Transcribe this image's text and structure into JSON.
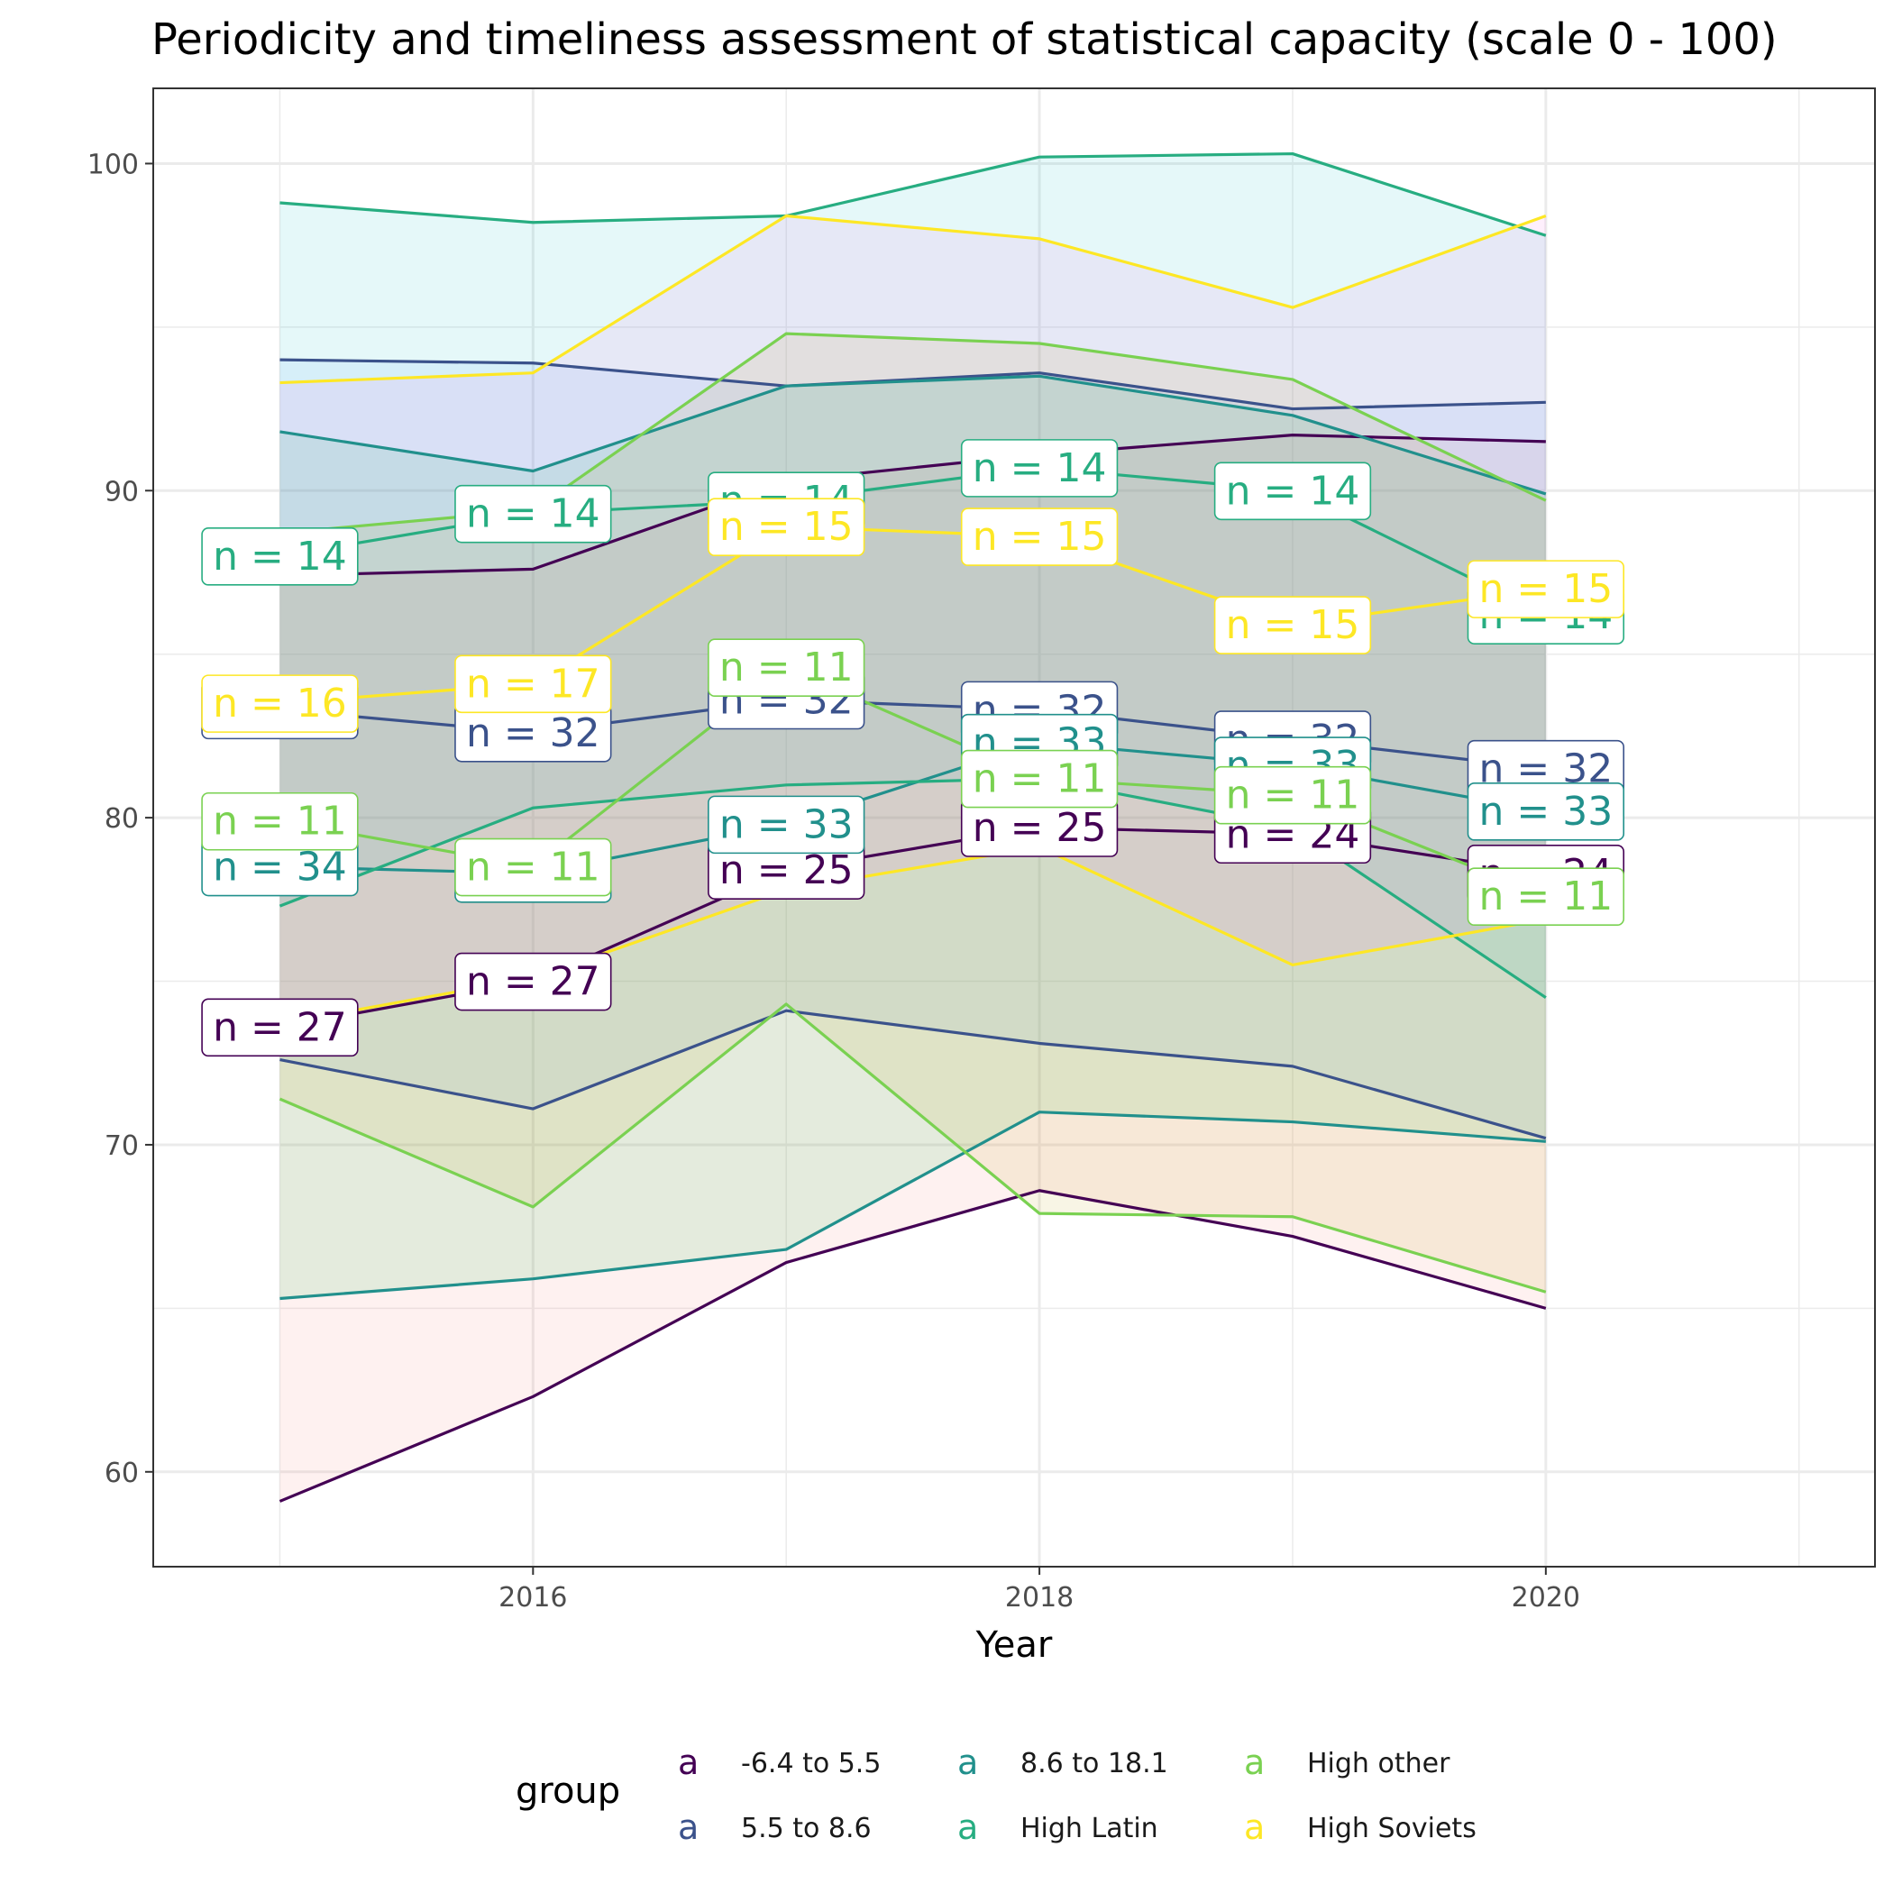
{
  "chart_data": {
    "type": "line",
    "title": "Periodicity and timeliness assessment of statistical capacity (scale 0 - 100)",
    "xlabel": "Year",
    "ylabel": "",
    "x": [
      2015,
      2016,
      2017,
      2018,
      2019,
      2020
    ],
    "xlim": [
      2014.5,
      2021.3
    ],
    "ylim": [
      57.1,
      102.3
    ],
    "xticks": [
      2016,
      2018,
      2020
    ],
    "yticks": [
      60,
      70,
      80,
      90,
      100
    ],
    "grid": true,
    "legend": {
      "title": "group",
      "placement": "bottom",
      "key_glyph": "a"
    },
    "series": [
      {
        "name": "-6.4 to 5.5",
        "color": "#440154",
        "mean": [
          73.6,
          75.0,
          78.4,
          79.7,
          79.5,
          78.3
        ],
        "upper": [
          87.4,
          87.6,
          90.3,
          91.1,
          91.7,
          91.5
        ],
        "lower": [
          59.1,
          62.3,
          66.4,
          68.6,
          67.2,
          65.0
        ],
        "fill": "#f8766d",
        "n": [
          27,
          27,
          25,
          25,
          24,
          24
        ]
      },
      {
        "name": "5.5 to 8.6",
        "color": "#3b528b",
        "mean": [
          83.3,
          82.6,
          83.6,
          83.3,
          82.4,
          81.5
        ],
        "upper": [
          94.0,
          93.9,
          93.2,
          93.6,
          92.5,
          92.7
        ],
        "lower": [
          72.6,
          71.1,
          74.1,
          73.1,
          72.4,
          70.2
        ],
        "fill": "#619cff",
        "n": [
          32,
          32,
          32,
          32,
          32,
          32
        ]
      },
      {
        "name": "8.6 to 18.1",
        "color": "#21908c",
        "mean": [
          78.5,
          78.3,
          79.8,
          82.3,
          81.6,
          80.2
        ],
        "upper": [
          91.8,
          90.6,
          93.2,
          93.5,
          92.3,
          89.9
        ],
        "lower": [
          65.3,
          65.9,
          66.8,
          71.0,
          70.7,
          70.1
        ],
        "fill": "#00ba38",
        "n": [
          34,
          33,
          33,
          33,
          33,
          33
        ]
      },
      {
        "name": "High Latin",
        "color": "#27ad81",
        "mean": [
          88.0,
          89.3,
          89.7,
          90.7,
          90.0,
          86.2
        ],
        "upper": [
          98.8,
          98.2,
          98.4,
          100.2,
          100.3,
          97.8
        ],
        "lower": [
          77.3,
          80.3,
          81.0,
          81.2,
          79.7,
          74.5
        ],
        "fill": "#00bfc4",
        "n": [
          14,
          14,
          14,
          14,
          14,
          14
        ]
      },
      {
        "name": "High other",
        "color": "#7ad151",
        "mean": [
          79.9,
          78.5,
          84.6,
          81.2,
          80.7,
          77.6
        ],
        "upper": [
          88.7,
          89.4,
          94.8,
          94.5,
          93.4,
          89.7
        ],
        "lower": [
          71.4,
          68.1,
          74.3,
          67.9,
          67.8,
          65.5
        ],
        "fill": "#b79f00",
        "n": [
          11,
          11,
          11,
          11,
          11,
          11
        ]
      },
      {
        "name": "High Soviets",
        "color": "#fde725",
        "mean": [
          83.5,
          84.1,
          88.9,
          88.6,
          85.9,
          87.0
        ],
        "upper": [
          93.3,
          93.6,
          98.4,
          97.7,
          95.6,
          98.4
        ],
        "lower": [
          73.7,
          75.1,
          77.8,
          79.1,
          75.5,
          76.9
        ],
        "fill": "#f564e3",
        "n": [
          16,
          17,
          15,
          15,
          15,
          15
        ]
      }
    ]
  }
}
